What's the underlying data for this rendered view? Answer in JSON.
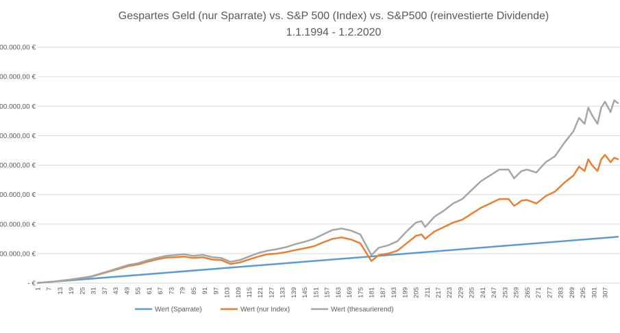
{
  "chart_data": {
    "type": "line",
    "title": "Gespartes Geld (nur Sparrate) vs. S&P 500 (Index) vs. S&P500 (reinvestierte Dividende)",
    "subtitle": "1.1.1994 - 1.2.2020",
    "ylabel": "",
    "xlabel": "",
    "ylim": [
      0,
      800000
    ],
    "xlim": [
      1,
      314
    ],
    "y_tick_values": [
      0,
      100000,
      200000,
      300000,
      400000,
      500000,
      600000,
      700000,
      800000
    ],
    "y_tick_labels": [
      "-  €",
      "00.000,00 €",
      "00.000,00 €",
      "00.000,00 €",
      "00.000,00 €",
      "00.000,00 €",
      "00.000,00 €",
      "00.000,00 €",
      "00.000,00 €"
    ],
    "x_tick_labels": [
      "1",
      "7",
      "13",
      "19",
      "25",
      "31",
      "37",
      "43",
      "49",
      "55",
      "61",
      "67",
      "73",
      "79",
      "85",
      "91",
      "97",
      "103",
      "109",
      "115",
      "121",
      "127",
      "133",
      "139",
      "145",
      "151",
      "157",
      "163",
      "169",
      "175",
      "181",
      "187",
      "193",
      "199",
      "205",
      "211",
      "217",
      "223",
      "229",
      "235",
      "241",
      "247",
      "253",
      "259",
      "265",
      "271",
      "277",
      "283",
      "289",
      "295",
      "301",
      "307"
    ],
    "grid": true,
    "legend_position": "bottom",
    "series": [
      {
        "name": "Wert (Sparrate)",
        "color": "#5b9bd5",
        "x": [
          1,
          314
        ],
        "values": [
          500,
          157000
        ]
      },
      {
        "name": "Wert (nur Index)",
        "color": "#ed7d31",
        "x": [
          1,
          10,
          20,
          30,
          40,
          50,
          55,
          60,
          65,
          70,
          75,
          80,
          85,
          90,
          95,
          100,
          105,
          110,
          115,
          120,
          125,
          130,
          135,
          140,
          145,
          150,
          155,
          160,
          165,
          170,
          175,
          178,
          181,
          185,
          190,
          195,
          200,
          205,
          208,
          210,
          215,
          220,
          225,
          230,
          235,
          240,
          245,
          250,
          255,
          258,
          260,
          262,
          265,
          270,
          275,
          280,
          285,
          290,
          293,
          296,
          298,
          300,
          303,
          305,
          307,
          310,
          312,
          314
        ],
        "values": [
          500,
          5000,
          13000,
          22000,
          40000,
          58000,
          63000,
          72000,
          80000,
          86000,
          88000,
          90000,
          85000,
          88000,
          80000,
          78000,
          65000,
          70000,
          80000,
          90000,
          98000,
          100000,
          105000,
          112000,
          118000,
          125000,
          138000,
          150000,
          155000,
          148000,
          135000,
          105000,
          75000,
          95000,
          100000,
          110000,
          135000,
          160000,
          165000,
          150000,
          175000,
          190000,
          205000,
          215000,
          235000,
          255000,
          270000,
          285000,
          285000,
          262000,
          270000,
          280000,
          282000,
          270000,
          295000,
          310000,
          340000,
          365000,
          395000,
          380000,
          420000,
          400000,
          380000,
          420000,
          435000,
          410000,
          425000,
          420000
        ]
      },
      {
        "name": "Wert (thesaurierend)",
        "color": "#a5a5a5",
        "x": [
          1,
          10,
          20,
          30,
          40,
          50,
          55,
          60,
          65,
          70,
          75,
          80,
          85,
          90,
          95,
          100,
          105,
          110,
          115,
          120,
          125,
          130,
          135,
          140,
          145,
          150,
          155,
          160,
          165,
          170,
          175,
          178,
          181,
          185,
          190,
          195,
          200,
          205,
          208,
          210,
          215,
          220,
          225,
          230,
          235,
          240,
          245,
          250,
          255,
          258,
          260,
          262,
          265,
          270,
          275,
          280,
          285,
          290,
          293,
          296,
          298,
          300,
          303,
          305,
          307,
          310,
          312,
          314
        ],
        "values": [
          500,
          5000,
          13000,
          23000,
          42000,
          62000,
          67000,
          77000,
          85000,
          92000,
          95000,
          98000,
          92000,
          96000,
          88000,
          85000,
          72000,
          78000,
          90000,
          102000,
          110000,
          115000,
          122000,
          132000,
          140000,
          150000,
          165000,
          180000,
          185000,
          178000,
          165000,
          130000,
          95000,
          120000,
          128000,
          142000,
          175000,
          205000,
          210000,
          190000,
          225000,
          245000,
          270000,
          285000,
          315000,
          345000,
          365000,
          385000,
          385000,
          355000,
          368000,
          380000,
          385000,
          375000,
          410000,
          430000,
          475000,
          515000,
          560000,
          540000,
          595000,
          570000,
          540000,
          595000,
          615000,
          580000,
          620000,
          610000
        ]
      }
    ]
  }
}
